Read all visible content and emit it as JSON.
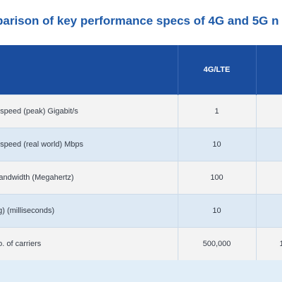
{
  "title": "parison of key performance specs of 4G and 5G n",
  "table": {
    "headers": [
      "",
      "4G/LTE",
      ""
    ],
    "rows": [
      {
        "param": "d speed (peak) Gigabit/s",
        "v4g": "1",
        "v5g": ""
      },
      {
        "param": "d speed (real world) Mbps",
        "v4g": "10",
        "v5g": ""
      },
      {
        "param": " Bandwidth (Megahertz)",
        "v4g": "100",
        "v5g": ""
      },
      {
        "param": "ag) (milliseconds)",
        "v4g": "10",
        "v5g": ""
      },
      {
        "param": " no. of carriers",
        "v4g": "500,000",
        "v5g": "1"
      }
    ]
  },
  "colors": {
    "title": "#1e5aa8",
    "header_bg": "#1a4d9e",
    "row_odd": "#f3f3f3",
    "row_even": "#dde9f4",
    "page_bg": "#e1eef8"
  }
}
